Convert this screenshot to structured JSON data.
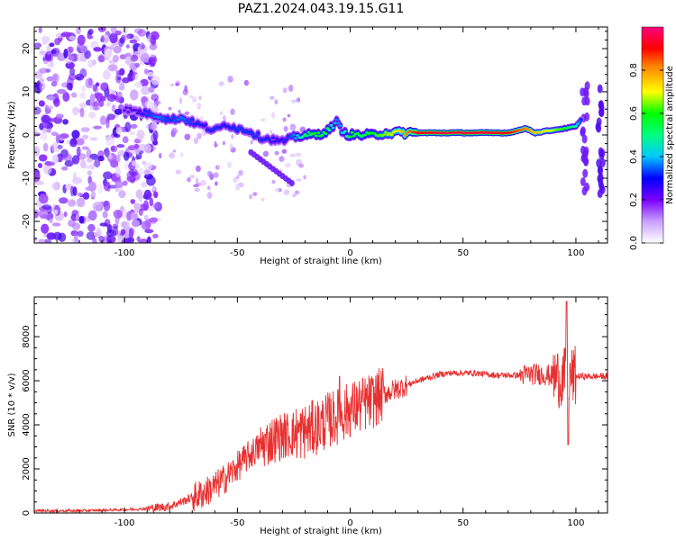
{
  "page": {
    "title": "PAZ1.2024.043.19.15.G11"
  },
  "chart_data": [
    {
      "type": "heatmap",
      "title": "PAZ1.2024.043.19.15.G11",
      "xlabel": "Height of straight line (km)",
      "ylabel": "Frequency (Hz)",
      "xlim": [
        -140,
        114
      ],
      "ylim": [
        -25,
        25
      ],
      "xticks": [
        -100,
        -50,
        0,
        50,
        100
      ],
      "xtick_labels": [
        "-100",
        "-50",
        "0",
        "50",
        "100"
      ],
      "yticks": [
        20,
        10,
        0,
        -10,
        -20
      ],
      "ytick_labels": [
        "20",
        "10",
        "0",
        "-10",
        "-20"
      ],
      "ridge": [
        {
          "x": -100,
          "y": 6.0,
          "amp": 0.25
        },
        {
          "x": -95,
          "y": 5.5,
          "amp": 0.25
        },
        {
          "x": -90,
          "y": 5.0,
          "amp": 0.35
        },
        {
          "x": -85,
          "y": 4.5,
          "amp": 0.4
        },
        {
          "x": -80,
          "y": 3.5,
          "amp": 0.35
        },
        {
          "x": -75,
          "y": 4.0,
          "amp": 0.4
        },
        {
          "x": -70,
          "y": 3.0,
          "amp": 0.35
        },
        {
          "x": -65,
          "y": 2.0,
          "amp": 0.3
        },
        {
          "x": -60,
          "y": 1.0,
          "amp": 0.35
        },
        {
          "x": -55,
          "y": 2.5,
          "amp": 0.3
        },
        {
          "x": -50,
          "y": 1.5,
          "amp": 0.35
        },
        {
          "x": -45,
          "y": 1.0,
          "amp": 0.35
        },
        {
          "x": -40,
          "y": -0.5,
          "amp": 0.35
        },
        {
          "x": -35,
          "y": -1.0,
          "amp": 0.3
        },
        {
          "x": -30,
          "y": -1.5,
          "amp": 0.3
        },
        {
          "x": -25,
          "y": -0.5,
          "amp": 0.4
        },
        {
          "x": -20,
          "y": 0.0,
          "amp": 0.55
        },
        {
          "x": -15,
          "y": 0.0,
          "amp": 0.6
        },
        {
          "x": -10,
          "y": 1.0,
          "amp": 0.55
        },
        {
          "x": -6,
          "y": 3.0,
          "amp": 0.4
        },
        {
          "x": -3,
          "y": 0.5,
          "amp": 0.45
        },
        {
          "x": 0,
          "y": 0.0,
          "amp": 0.6
        },
        {
          "x": 5,
          "y": 0.0,
          "amp": 0.55
        },
        {
          "x": 10,
          "y": 0.0,
          "amp": 0.6
        },
        {
          "x": 15,
          "y": 0.5,
          "amp": 0.65
        },
        {
          "x": 20,
          "y": 0.5,
          "amp": 0.7
        },
        {
          "x": 25,
          "y": 0.5,
          "amp": 0.8
        },
        {
          "x": 30,
          "y": 0.5,
          "amp": 0.9
        },
        {
          "x": 40,
          "y": 0.5,
          "amp": 0.95
        },
        {
          "x": 50,
          "y": 0.5,
          "amp": 0.95
        },
        {
          "x": 60,
          "y": 0.5,
          "amp": 0.95
        },
        {
          "x": 70,
          "y": 0.5,
          "amp": 0.9
        },
        {
          "x": 78,
          "y": 1.5,
          "amp": 0.8
        },
        {
          "x": 82,
          "y": 0.5,
          "amp": 0.75
        },
        {
          "x": 88,
          "y": 1.0,
          "amp": 0.7
        },
        {
          "x": 95,
          "y": 1.5,
          "amp": 0.6
        },
        {
          "x": 100,
          "y": 2.0,
          "amp": 0.5
        },
        {
          "x": 103,
          "y": 4.0,
          "amp": 0.3
        }
      ],
      "colorbar": {
        "label": "Normalized spectral amplitude",
        "range": [
          0.0,
          1.0
        ],
        "ticks": [
          0.0,
          0.2,
          0.4,
          0.6,
          0.8
        ],
        "tick_labels": [
          "0.0",
          "0.2",
          "0.4",
          "0.6",
          "0.8"
        ],
        "colormap": "gist_ncar_r (white → violet → blue → cyan → green → yellow → red → magenta)",
        "stops": [
          "#ffffff",
          "#8a2be2",
          "#0000ff",
          "#00ffff",
          "#00ff00",
          "#ffff00",
          "#ff0000",
          "#ff0080"
        ]
      },
      "grid": false,
      "legend": "none"
    },
    {
      "type": "line",
      "xlabel": "Height of straight line (km)",
      "ylabel": "SNR (10 * v/v)",
      "xlim": [
        -140,
        114
      ],
      "ylim": [
        0,
        9800
      ],
      "xticks": [
        -100,
        -50,
        0,
        50,
        100
      ],
      "xtick_labels": [
        "-100",
        "-50",
        "0",
        "50",
        "100"
      ],
      "yticks": [
        0,
        2000,
        4000,
        6000,
        8000
      ],
      "ytick_labels": [
        "0",
        "2000",
        "4000",
        "6000",
        "8000"
      ],
      "series": [
        {
          "color": "#e83030",
          "x": [
            -140,
            -120,
            -100,
            -90,
            -80,
            -75,
            -70,
            -65,
            -60,
            -55,
            -50,
            -45,
            -40,
            -35,
            -30,
            -25,
            -20,
            -15,
            -10,
            -5,
            0,
            5,
            10,
            15,
            20,
            25,
            30,
            35,
            40,
            45,
            50,
            55,
            60,
            65,
            70,
            75,
            80,
            85,
            90,
            95,
            100,
            105,
            110,
            114
          ],
          "y": [
            100,
            100,
            150,
            200,
            300,
            500,
            700,
            900,
            1200,
            1600,
            2100,
            2600,
            3000,
            3300,
            3500,
            3600,
            3700,
            3900,
            4200,
            4400,
            4700,
            4900,
            5100,
            5400,
            5600,
            5800,
            6000,
            6150,
            6300,
            6350,
            6350,
            6350,
            6300,
            6250,
            6250,
            6250,
            6300,
            6300,
            6200,
            6100,
            6200,
            6200,
            6200,
            6200
          ]
        }
      ],
      "noise_amplitude_note": "",
      "grid": false,
      "legend": "none"
    }
  ]
}
